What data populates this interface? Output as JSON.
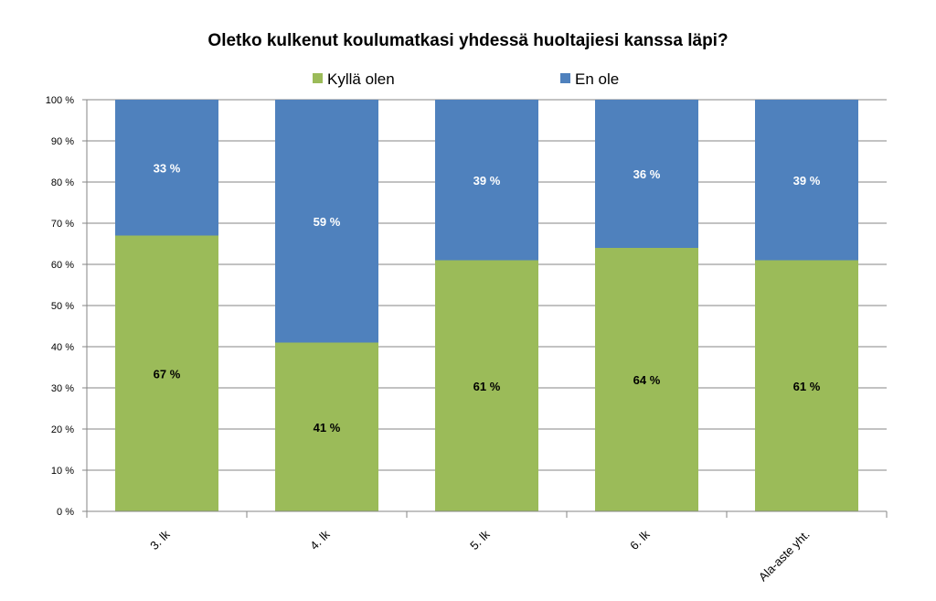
{
  "chart_data": {
    "type": "bar",
    "stacked": true,
    "title": "Oletko kulkenut koulumatkasi yhdessä huoltajiesi kanssa läpi?",
    "categories": [
      "3. lk",
      "4. lk",
      "5. lk",
      "6. lk",
      "Ala-aste yht."
    ],
    "series": [
      {
        "name": "Kyllä olen",
        "values": [
          67,
          41,
          61,
          64,
          61
        ],
        "labels": [
          "67 %",
          "41 %",
          "61 %",
          "64 %",
          "61 %"
        ],
        "color": "#9bbb59",
        "label_color": "#000000"
      },
      {
        "name": "En ole",
        "values": [
          33,
          59,
          39,
          36,
          39
        ],
        "labels": [
          "33 %",
          "59 %",
          "39 %",
          "36 %",
          "39 %"
        ],
        "color": "#4f81bd",
        "label_color": "#ffffff"
      }
    ],
    "yticks": [
      "0 %",
      "10 %",
      "20 %",
      "30 %",
      "40 %",
      "50 %",
      "60 %",
      "70 %",
      "80 %",
      "90 %",
      "100 %"
    ],
    "ylim": [
      0,
      100
    ],
    "grid": true,
    "legend": "top"
  }
}
